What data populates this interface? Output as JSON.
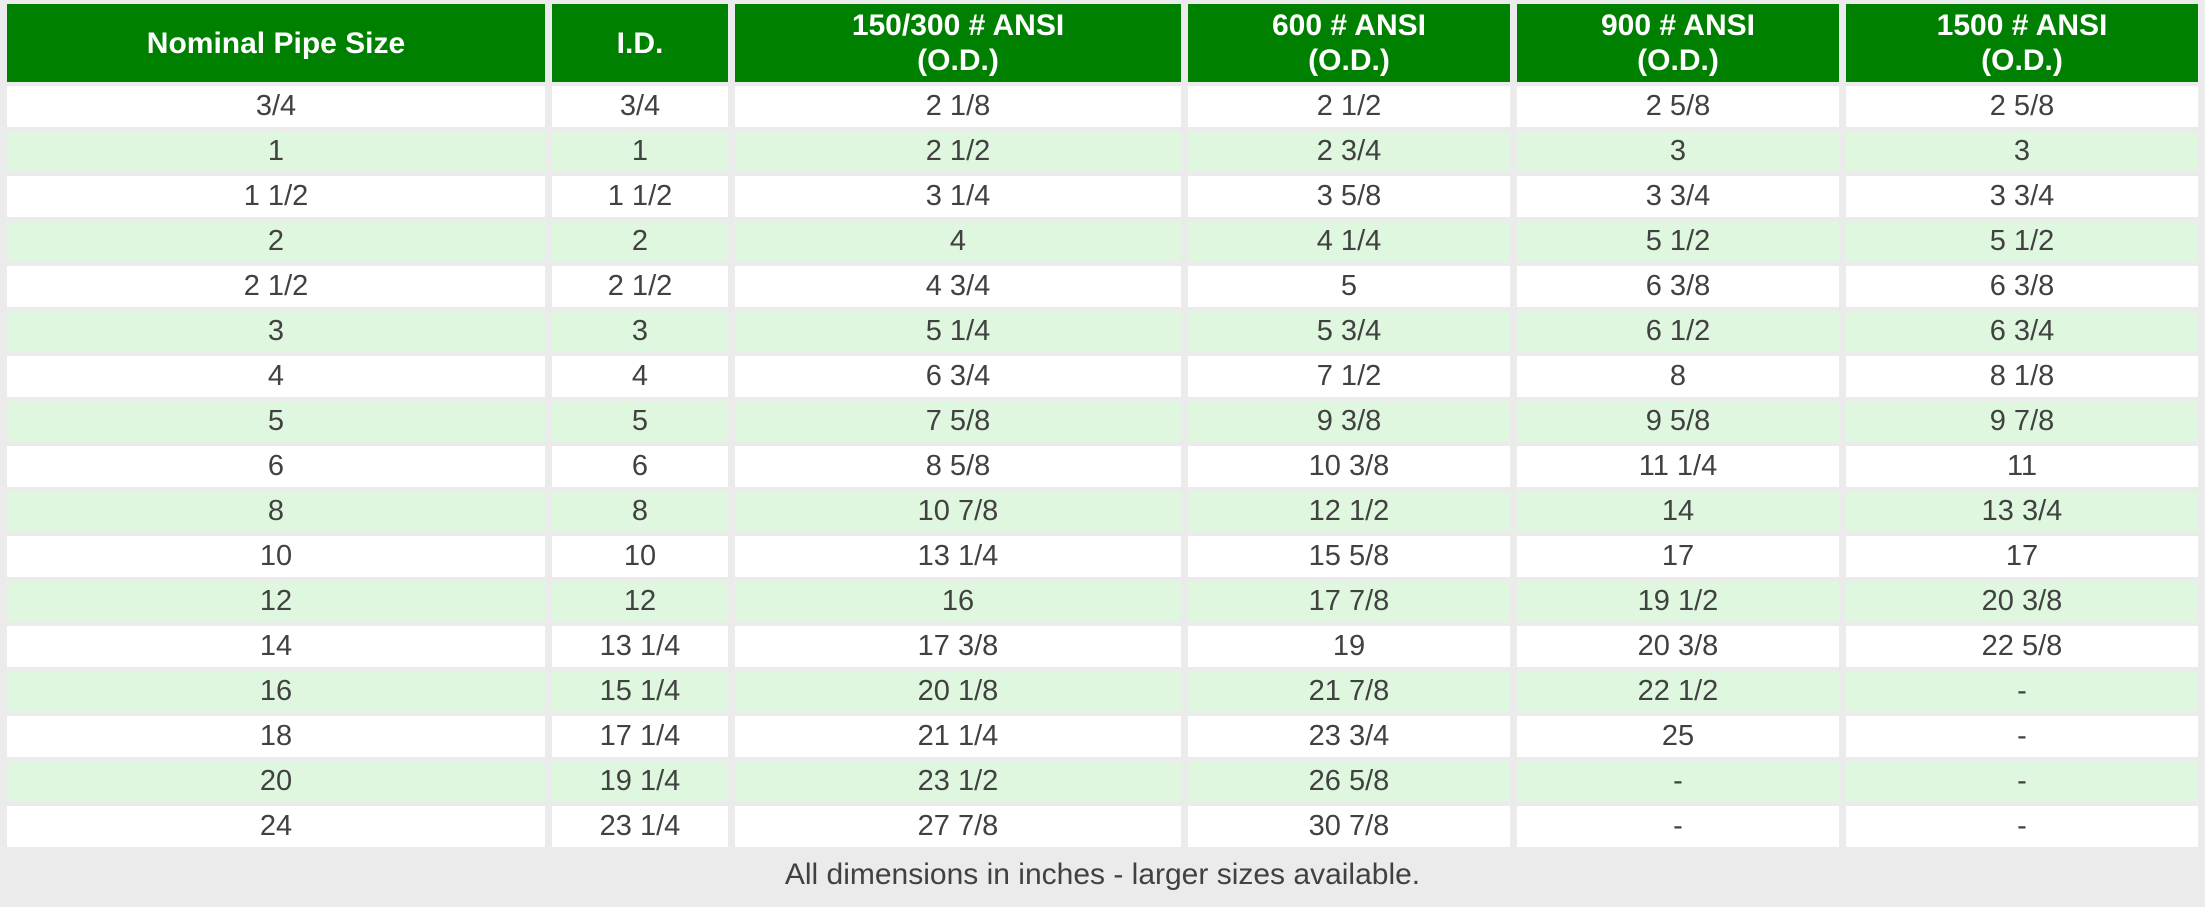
{
  "page": {
    "background": "#EBEBEB"
  },
  "colors": {
    "header_bg": "#008000",
    "header_text": "#FFFFFF",
    "row_white": "#FFFFFF",
    "row_green": "#DFF7DF",
    "cell_text": "#414141",
    "footnote_text": "#414141"
  },
  "header": {
    "cells": [
      {
        "line1": "Nominal Pipe Size",
        "line2": ""
      },
      {
        "line1": "I.D.",
        "line2": ""
      },
      {
        "line1": "150/300 # ANSI",
        "line2": "(O.D.)"
      },
      {
        "line1": "600 # ANSI",
        "line2": "(O.D.)"
      },
      {
        "line1": "900 # ANSI",
        "line2": "(O.D.)"
      },
      {
        "line1": "1500 # ANSI",
        "line2": "(O.D.)"
      }
    ]
  },
  "chart_data": {
    "type": "table",
    "columns": [
      "Nominal Pipe Size",
      "I.D.",
      "150/300 # ANSI (O.D.)",
      "600 # ANSI (O.D.)",
      "900 # ANSI (O.D.)",
      "1500 # ANSI (O.D.)"
    ],
    "rows": [
      [
        "3/4",
        "3/4",
        "2 1/8",
        "2 1/2",
        "2 5/8",
        "2 5/8"
      ],
      [
        "1",
        "1",
        "2 1/2",
        "2 3/4",
        "3",
        "3"
      ],
      [
        "1 1/2",
        "1 1/2",
        "3 1/4",
        "3 5/8",
        "3 3/4",
        "3 3/4"
      ],
      [
        "2",
        "2",
        "4",
        "4 1/4",
        "5 1/2",
        "5 1/2"
      ],
      [
        "2 1/2",
        "2 1/2",
        "4 3/4",
        "5",
        "6 3/8",
        "6 3/8"
      ],
      [
        "3",
        "3",
        "5 1/4",
        "5 3/4",
        "6 1/2",
        "6 3/4"
      ],
      [
        "4",
        "4",
        "6 3/4",
        "7 1/2",
        "8",
        "8 1/8"
      ],
      [
        "5",
        "5",
        "7 5/8",
        "9 3/8",
        "9 5/8",
        "9 7/8"
      ],
      [
        "6",
        "6",
        "8 5/8",
        "10 3/8",
        "11 1/4",
        "11"
      ],
      [
        "8",
        "8",
        "10 7/8",
        "12 1/2",
        "14",
        "13 3/4"
      ],
      [
        "10",
        "10",
        "13 1/4",
        "15 5/8",
        "17",
        "17"
      ],
      [
        "12",
        "12",
        "16",
        "17 7/8",
        "19 1/2",
        "20 3/8"
      ],
      [
        "14",
        "13 1/4",
        "17 3/8",
        "19",
        "20 3/8",
        "22 5/8"
      ],
      [
        "16",
        "15 1/4",
        "20 1/8",
        "21 7/8",
        "22 1/2",
        "-"
      ],
      [
        "18",
        "17 1/4",
        "21 1/4",
        "23 3/4",
        "25",
        "-"
      ],
      [
        "20",
        "19 1/4",
        "23 1/2",
        "26 5/8",
        "-",
        "-"
      ],
      [
        "24",
        "23 1/4",
        "27 7/8",
        "30 7/8",
        "-",
        "-"
      ]
    ]
  },
  "footer": {
    "note": "All dimensions in inches - larger sizes available."
  }
}
